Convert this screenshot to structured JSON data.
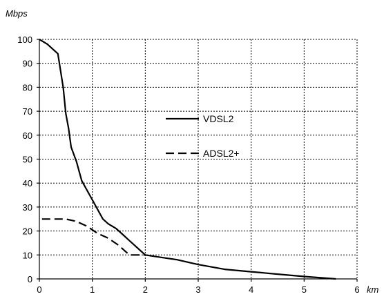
{
  "chart_data": {
    "type": "line",
    "title": "",
    "xlabel": "km",
    "ylabel": "Mbps",
    "xlim": [
      0,
      6
    ],
    "ylim": [
      0,
      100
    ],
    "x_ticks": [
      0,
      1,
      2,
      3,
      4,
      5,
      6
    ],
    "y_ticks": [
      0,
      10,
      20,
      30,
      40,
      50,
      60,
      70,
      80,
      90,
      100
    ],
    "x_tick_labels": [
      "0",
      "1",
      "2",
      "3",
      "4",
      "5",
      "6"
    ],
    "y_tick_labels": [
      "0",
      "10",
      "20",
      "30",
      "40",
      "50",
      "60",
      "70",
      "80",
      "90",
      "100"
    ],
    "grid": true,
    "legend_position": "center-right",
    "series": [
      {
        "name": "VDSL2",
        "line_style": "solid",
        "color": "#000000",
        "x": [
          0,
          0.15,
          0.35,
          0.45,
          0.5,
          0.55,
          0.6,
          0.7,
          0.8,
          0.9,
          1.0,
          1.1,
          1.2,
          1.3,
          1.45,
          1.6,
          1.7,
          1.8,
          1.9,
          2.0,
          2.3,
          2.6,
          3.0,
          3.5,
          4.0,
          4.5,
          5.0,
          5.6
        ],
        "y": [
          100,
          98,
          94,
          80,
          69,
          63,
          55,
          49,
          41,
          37,
          33,
          29,
          25,
          23,
          21,
          18,
          16,
          14,
          12,
          10,
          9,
          8,
          6,
          4,
          3,
          2,
          1,
          0
        ]
      },
      {
        "name": "ADSL2+",
        "line_style": "dashed",
        "color": "#000000",
        "x": [
          0.05,
          0.35,
          0.5,
          0.7,
          0.9,
          1.1,
          1.3,
          1.5,
          1.6,
          1.7,
          1.8,
          2.0
        ],
        "y": [
          25,
          25,
          25,
          24,
          22,
          19,
          17,
          14,
          12,
          10,
          10,
          10
        ]
      }
    ]
  }
}
